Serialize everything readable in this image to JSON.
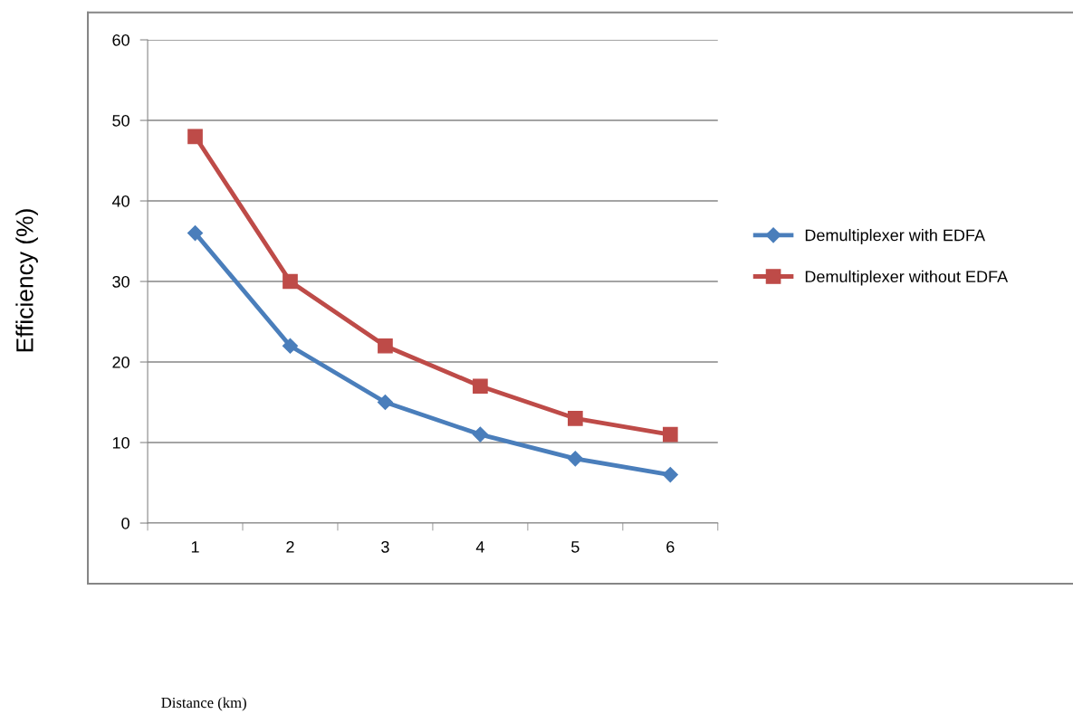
{
  "chart_data": {
    "type": "line",
    "annotations": [
      "Distance (km)"
    ],
    "ylabel": "Efficiency (%)",
    "categories": [
      "1",
      "2",
      "3",
      "4",
      "5",
      "6"
    ],
    "series": [
      {
        "name": "Demultiplexer with EDFA",
        "color": "#4a7ebb",
        "marker": "diamond",
        "values": [
          36,
          22,
          15,
          11,
          8,
          6
        ]
      },
      {
        "name": "Demultiplexer without EDFA",
        "color": "#be4b48",
        "marker": "square",
        "values": [
          48,
          30,
          22,
          17,
          13,
          11
        ]
      }
    ],
    "ylim": [
      0,
      60
    ],
    "yticks": [
      0,
      10,
      20,
      30,
      40,
      50,
      60
    ],
    "grid": "y",
    "legend": "right",
    "line_style": "solid"
  }
}
